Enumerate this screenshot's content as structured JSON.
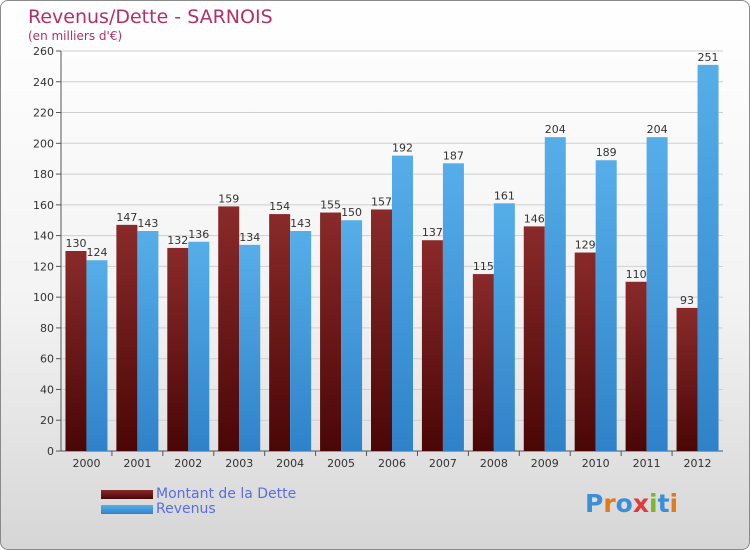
{
  "header": {
    "title": "Revenus/Dette - SARNOIS",
    "subtitle": "(en milliers d'€)"
  },
  "colors": {
    "dette": "#7a1a1a",
    "revenus": "#4aa3e6",
    "title": "#b2306b",
    "legend_text": "#5a6ee0"
  },
  "chart_data": {
    "type": "bar",
    "categories": [
      "2000",
      "2001",
      "2002",
      "2003",
      "2004",
      "2005",
      "2006",
      "2007",
      "2008",
      "2009",
      "2010",
      "2011",
      "2012"
    ],
    "series": [
      {
        "name": "Montant de la Dette",
        "values": [
          130,
          147,
          132,
          159,
          154,
          155,
          157,
          137,
          115,
          146,
          129,
          110,
          93
        ]
      },
      {
        "name": "Revenus",
        "values": [
          124,
          143,
          136,
          134,
          143,
          150,
          192,
          187,
          161,
          204,
          189,
          204,
          251
        ]
      }
    ],
    "ylim": [
      0,
      260
    ],
    "yticks": [
      0,
      20,
      40,
      60,
      80,
      100,
      120,
      140,
      160,
      180,
      200,
      220,
      240,
      260
    ],
    "grid": true,
    "legend_position": "bottom-left"
  },
  "legend": {
    "items": [
      {
        "label": "Montant de la Dette"
      },
      {
        "label": "Revenus"
      }
    ]
  },
  "logo": {
    "text": "Proxiti"
  }
}
